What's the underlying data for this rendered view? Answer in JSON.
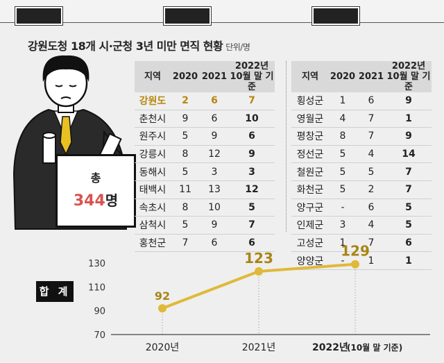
{
  "title": "강원도청 18개 시·군청 3년 미만 면직 현황",
  "unit": "단위/명",
  "table": {
    "headers": [
      "지역",
      "2020",
      "2021",
      "2022년 10월 말 기준"
    ],
    "left_rows": [
      {
        "region": "강원도",
        "y2020": "2",
        "y2021": "6",
        "y2022": "7"
      },
      {
        "region": "춘천시",
        "y2020": "9",
        "y2021": "6",
        "y2022": "10"
      },
      {
        "region": "원주시",
        "y2020": "5",
        "y2021": "9",
        "y2022": "6"
      },
      {
        "region": "강릉시",
        "y2020": "8",
        "y2021": "12",
        "y2022": "9"
      },
      {
        "region": "동해시",
        "y2020": "5",
        "y2021": "3",
        "y2022": "3"
      },
      {
        "region": "태백시",
        "y2020": "11",
        "y2021": "13",
        "y2022": "12"
      },
      {
        "region": "속초시",
        "y2020": "8",
        "y2021": "10",
        "y2022": "5"
      },
      {
        "region": "삼척시",
        "y2020": "5",
        "y2021": "9",
        "y2022": "7"
      },
      {
        "region": "홍천군",
        "y2020": "7",
        "y2021": "6",
        "y2022": "6"
      }
    ],
    "right_rows": [
      {
        "region": "횡성군",
        "y2020": "1",
        "y2021": "6",
        "y2022": "9"
      },
      {
        "region": "영월군",
        "y2020": "4",
        "y2021": "7",
        "y2022": "1"
      },
      {
        "region": "평창군",
        "y2020": "8",
        "y2021": "7",
        "y2022": "9"
      },
      {
        "region": "정선군",
        "y2020": "5",
        "y2021": "4",
        "y2022": "14"
      },
      {
        "region": "철원군",
        "y2020": "5",
        "y2021": "5",
        "y2022": "7"
      },
      {
        "region": "화천군",
        "y2020": "5",
        "y2021": "2",
        "y2022": "7"
      },
      {
        "region": "양구군",
        "y2020": "-",
        "y2021": "6",
        "y2022": "5"
      },
      {
        "region": "인제군",
        "y2020": "3",
        "y2021": "4",
        "y2022": "5"
      },
      {
        "region": "고성군",
        "y2020": "1",
        "y2021": "7",
        "y2022": "6"
      },
      {
        "region": "양양군",
        "y2020": "-",
        "y2021": "1",
        "y2022": "1"
      }
    ]
  },
  "box": {
    "label_top": "총",
    "total": "344",
    "suffix": "명"
  },
  "sum_label": "합 계",
  "chart_data": {
    "type": "line",
    "categories": [
      "2020년",
      "2021년",
      "2022년"
    ],
    "category_notes": [
      "",
      "",
      "(10월 말 기준)"
    ],
    "values": [
      92,
      123,
      129
    ],
    "ylim": [
      70,
      130
    ],
    "yticks": [
      70,
      90,
      110,
      130
    ],
    "grid": false,
    "color": "#e0b93a",
    "label_color": "#a88514"
  }
}
